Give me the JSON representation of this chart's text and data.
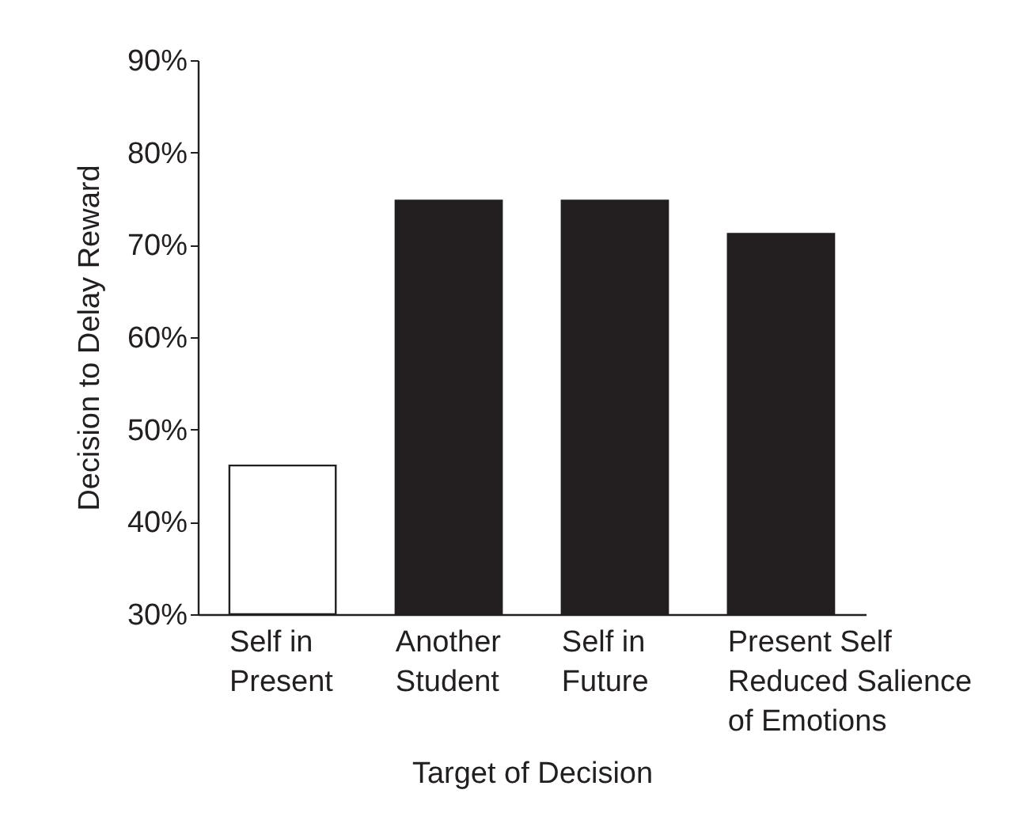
{
  "chart_data": {
    "type": "bar",
    "xlabel": "Target of Decision",
    "ylabel": "Decision to Delay Reward",
    "categories": [
      "Self in\nPresent",
      "Another\nStudent",
      "Self in\nFuture",
      "Present Self\nReduced Salience\nof Emotions"
    ],
    "values": [
      46.1,
      74.8,
      74.8,
      71.2
    ],
    "colors": [
      "#ffffff",
      "#231f20",
      "#231f20",
      "#231f20"
    ],
    "ylim": [
      30,
      90
    ],
    "yticks": [
      {
        "value": 30,
        "label": "30%"
      },
      {
        "value": 40,
        "label": "40%"
      },
      {
        "value": 50,
        "label": "50%"
      },
      {
        "value": 60,
        "label": "60%"
      },
      {
        "value": 70,
        "label": "70%"
      },
      {
        "value": 80,
        "label": "80%"
      },
      {
        "value": 90,
        "label": "90%"
      }
    ],
    "grid": false
  }
}
